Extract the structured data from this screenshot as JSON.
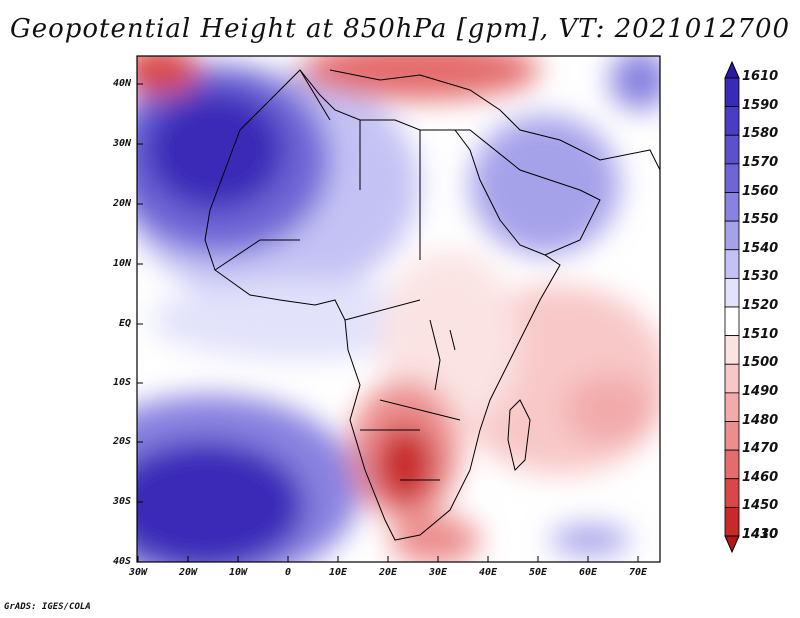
{
  "title": "Geopotential Height at 850hPa [gpm], VT: 2021012700",
  "credit": "GrADS: IGES/COLA",
  "lat_labels": [
    "40N",
    "30N",
    "20N",
    "10N",
    "EQ",
    "10S",
    "20S",
    "30S",
    "40S"
  ],
  "lon_labels": [
    "30W",
    "20W",
    "10W",
    "0",
    "10E",
    "20E",
    "30E",
    "40E",
    "50E",
    "60E",
    "70E"
  ],
  "colorbar": {
    "labels": [
      "1610",
      "1590",
      "1580",
      "1570",
      "1560",
      "1550",
      "1540",
      "1530",
      "1520",
      "1510",
      "1500",
      "1490",
      "1480",
      "1470",
      "1460",
      "1450",
      "1430",
      "1410"
    ],
    "colors": [
      "#2a1aa8",
      "#3a2ab8",
      "#4a3cc4",
      "#5c50cc",
      "#6e66d6",
      "#8882e0",
      "#a6a2ea",
      "#c4c2f4",
      "#e2e2fb",
      "#ffffff",
      "#fbe3e3",
      "#f8c8c8",
      "#f2aaaa",
      "#ec8e8e",
      "#e46c6c",
      "#d94848",
      "#c82a2a",
      "#b01818"
    ]
  }
}
